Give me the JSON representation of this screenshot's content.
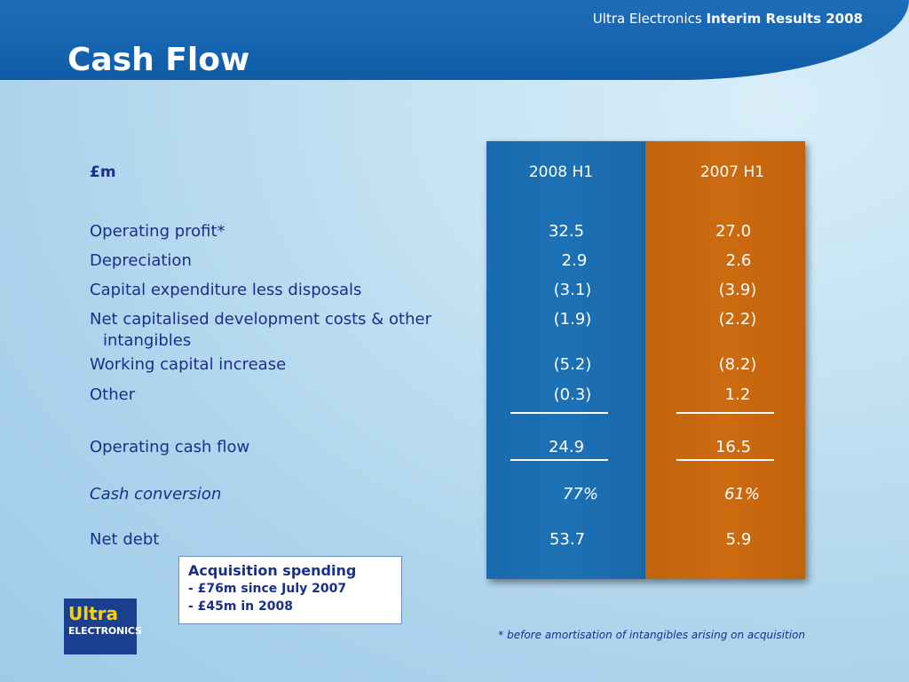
{
  "header": {
    "brand_normal": "Ultra Electronics ",
    "brand_bold": "Interim Results 2008",
    "title": "Cash Flow"
  },
  "table": {
    "unit": "£m",
    "columns": [
      "2008 H1",
      "2007 H1"
    ],
    "rows": [
      {
        "label": "Operating profit*",
        "values": [
          "32.5",
          "27.0"
        ]
      },
      {
        "label": "Depreciation",
        "values": [
          "2.9",
          "2.6"
        ]
      },
      {
        "label": "Capital expenditure less disposals",
        "values": [
          "(3.1)",
          "(3.9)"
        ]
      },
      {
        "label_line1": "Net capitalised development costs & other",
        "label_line2": "intangibles",
        "values": [
          "(1.9)",
          "(2.2)"
        ]
      },
      {
        "label": "Working capital increase",
        "values": [
          "(5.2)",
          "(8.2)"
        ]
      },
      {
        "label": "Other",
        "values": [
          "(0.3)",
          "1.2"
        ]
      },
      {
        "label": "Operating cash flow",
        "values": [
          "24.9",
          "16.5"
        ]
      },
      {
        "label": "Cash conversion",
        "values": [
          "77%",
          "61%"
        ]
      },
      {
        "label": "Net debt",
        "values": [
          "53.7",
          "5.9"
        ]
      }
    ]
  },
  "acquisition": {
    "title": "Acquisition spending",
    "items": [
      "-  £76m since July 2007",
      "-  £45m in 2008"
    ]
  },
  "logo": {
    "line1": "Ultra",
    "line2": "ELECTRONICS"
  },
  "footnote": "* before amortisation of intangibles arising on acquisition",
  "colors": {
    "header_blue": "#1564b0",
    "column_2008": "#1d71b5",
    "column_2007": "#cc6b10",
    "text_navy": "#1a2f8a"
  }
}
